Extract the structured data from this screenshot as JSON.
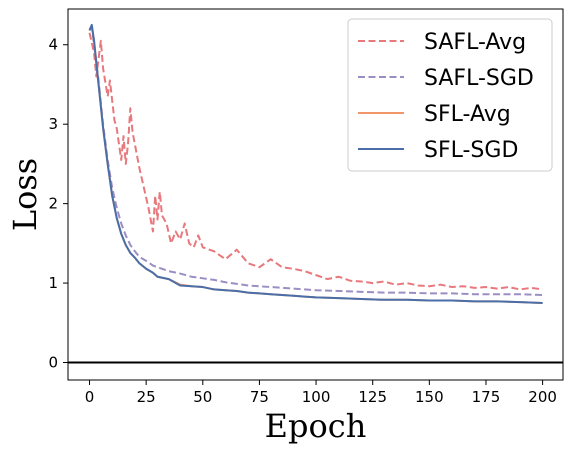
{
  "chart_data": {
    "type": "line",
    "xlabel": "Epoch",
    "ylabel": "Loss",
    "xlim": [
      -9.5,
      209
    ],
    "ylim": [
      -0.22,
      4.45
    ],
    "xticks": [
      0,
      25,
      50,
      75,
      100,
      125,
      150,
      175,
      200
    ],
    "yticks": [
      0,
      1,
      2,
      3,
      4
    ],
    "hline": 0,
    "grid": false,
    "legend": "top-right",
    "series": [
      {
        "name": "SAFL-Avg",
        "color": "#e8787c",
        "dash": "dashed",
        "points": [
          [
            0,
            4.15
          ],
          [
            2,
            3.9
          ],
          [
            3,
            3.6
          ],
          [
            5,
            4.05
          ],
          [
            6,
            3.7
          ],
          [
            8,
            3.35
          ],
          [
            9,
            3.55
          ],
          [
            11,
            3.05
          ],
          [
            12,
            2.95
          ],
          [
            14,
            2.55
          ],
          [
            15,
            2.85
          ],
          [
            16,
            2.5
          ],
          [
            17,
            2.75
          ],
          [
            18,
            3.2
          ],
          [
            19,
            2.9
          ],
          [
            20,
            2.75
          ],
          [
            22,
            2.45
          ],
          [
            24,
            2.2
          ],
          [
            26,
            1.95
          ],
          [
            28,
            1.65
          ],
          [
            29,
            2.1
          ],
          [
            30,
            1.8
          ],
          [
            31,
            2.15
          ],
          [
            32,
            1.85
          ],
          [
            34,
            1.75
          ],
          [
            36,
            1.5
          ],
          [
            38,
            1.65
          ],
          [
            40,
            1.55
          ],
          [
            42,
            1.75
          ],
          [
            44,
            1.5
          ],
          [
            46,
            1.45
          ],
          [
            48,
            1.6
          ],
          [
            50,
            1.45
          ],
          [
            55,
            1.4
          ],
          [
            60,
            1.3
          ],
          [
            65,
            1.42
          ],
          [
            70,
            1.25
          ],
          [
            75,
            1.2
          ],
          [
            80,
            1.3
          ],
          [
            85,
            1.2
          ],
          [
            90,
            1.18
          ],
          [
            95,
            1.15
          ],
          [
            100,
            1.1
          ],
          [
            105,
            1.05
          ],
          [
            110,
            1.08
          ],
          [
            115,
            1.03
          ],
          [
            120,
            1.02
          ],
          [
            125,
            1.0
          ],
          [
            130,
            1.02
          ],
          [
            135,
            0.98
          ],
          [
            140,
            1.0
          ],
          [
            145,
            0.97
          ],
          [
            150,
            0.96
          ],
          [
            155,
            0.98
          ],
          [
            160,
            0.95
          ],
          [
            165,
            0.96
          ],
          [
            170,
            0.94
          ],
          [
            175,
            0.95
          ],
          [
            180,
            0.93
          ],
          [
            185,
            0.95
          ],
          [
            190,
            0.92
          ],
          [
            195,
            0.94
          ],
          [
            200,
            0.92
          ]
        ]
      },
      {
        "name": "SAFL-SGD",
        "color": "#9b8ec4",
        "dash": "dashed",
        "points": [
          [
            0,
            4.2
          ],
          [
            1,
            4.22
          ],
          [
            2,
            4.0
          ],
          [
            4,
            3.55
          ],
          [
            6,
            3.0
          ],
          [
            8,
            2.55
          ],
          [
            10,
            2.2
          ],
          [
            12,
            1.95
          ],
          [
            14,
            1.75
          ],
          [
            16,
            1.6
          ],
          [
            18,
            1.48
          ],
          [
            20,
            1.4
          ],
          [
            22,
            1.33
          ],
          [
            25,
            1.28
          ],
          [
            28,
            1.22
          ],
          [
            30,
            1.2
          ],
          [
            35,
            1.15
          ],
          [
            40,
            1.12
          ],
          [
            45,
            1.08
          ],
          [
            50,
            1.06
          ],
          [
            55,
            1.04
          ],
          [
            60,
            1.01
          ],
          [
            65,
            0.99
          ],
          [
            70,
            0.97
          ],
          [
            75,
            0.96
          ],
          [
            80,
            0.95
          ],
          [
            85,
            0.94
          ],
          [
            90,
            0.93
          ],
          [
            95,
            0.92
          ],
          [
            100,
            0.91
          ],
          [
            110,
            0.9
          ],
          [
            120,
            0.89
          ],
          [
            130,
            0.88
          ],
          [
            140,
            0.88
          ],
          [
            150,
            0.87
          ],
          [
            160,
            0.87
          ],
          [
            170,
            0.86
          ],
          [
            180,
            0.86
          ],
          [
            190,
            0.86
          ],
          [
            200,
            0.85
          ]
        ]
      },
      {
        "name": "SFL-Avg",
        "color": "#f0966a",
        "dash": "solid",
        "points": [
          [
            0,
            4.18
          ],
          [
            1,
            4.24
          ],
          [
            2,
            4.05
          ],
          [
            4,
            3.5
          ],
          [
            6,
            2.95
          ],
          [
            8,
            2.5
          ],
          [
            10,
            2.1
          ],
          [
            12,
            1.82
          ],
          [
            14,
            1.62
          ],
          [
            16,
            1.48
          ],
          [
            18,
            1.38
          ],
          [
            20,
            1.32
          ],
          [
            22,
            1.25
          ],
          [
            25,
            1.18
          ],
          [
            28,
            1.13
          ],
          [
            30,
            1.08
          ],
          [
            35,
            1.05
          ],
          [
            40,
            0.98
          ],
          [
            45,
            0.96
          ],
          [
            50,
            0.95
          ],
          [
            55,
            0.92
          ],
          [
            60,
            0.91
          ],
          [
            65,
            0.9
          ],
          [
            70,
            0.88
          ],
          [
            75,
            0.87
          ],
          [
            80,
            0.86
          ],
          [
            85,
            0.85
          ],
          [
            90,
            0.84
          ],
          [
            95,
            0.83
          ],
          [
            100,
            0.82
          ],
          [
            110,
            0.81
          ],
          [
            120,
            0.8
          ],
          [
            130,
            0.79
          ],
          [
            140,
            0.79
          ],
          [
            150,
            0.78
          ],
          [
            160,
            0.78
          ],
          [
            170,
            0.77
          ],
          [
            180,
            0.77
          ],
          [
            190,
            0.76
          ],
          [
            200,
            0.75
          ]
        ]
      },
      {
        "name": "SFL-SGD",
        "color": "#4a6ea8",
        "dash": "solid",
        "points": [
          [
            0,
            4.18
          ],
          [
            1,
            4.25
          ],
          [
            2,
            4.05
          ],
          [
            4,
            3.5
          ],
          [
            6,
            2.95
          ],
          [
            8,
            2.5
          ],
          [
            10,
            2.1
          ],
          [
            12,
            1.82
          ],
          [
            14,
            1.62
          ],
          [
            16,
            1.48
          ],
          [
            18,
            1.38
          ],
          [
            20,
            1.32
          ],
          [
            22,
            1.25
          ],
          [
            25,
            1.18
          ],
          [
            28,
            1.13
          ],
          [
            30,
            1.08
          ],
          [
            35,
            1.05
          ],
          [
            40,
            0.97
          ],
          [
            45,
            0.96
          ],
          [
            50,
            0.95
          ],
          [
            55,
            0.92
          ],
          [
            60,
            0.91
          ],
          [
            65,
            0.9
          ],
          [
            70,
            0.88
          ],
          [
            75,
            0.87
          ],
          [
            80,
            0.86
          ],
          [
            85,
            0.85
          ],
          [
            90,
            0.84
          ],
          [
            95,
            0.83
          ],
          [
            100,
            0.82
          ],
          [
            110,
            0.81
          ],
          [
            120,
            0.8
          ],
          [
            130,
            0.79
          ],
          [
            140,
            0.79
          ],
          [
            150,
            0.78
          ],
          [
            160,
            0.78
          ],
          [
            170,
            0.77
          ],
          [
            180,
            0.77
          ],
          [
            190,
            0.76
          ],
          [
            200,
            0.75
          ]
        ]
      }
    ]
  }
}
